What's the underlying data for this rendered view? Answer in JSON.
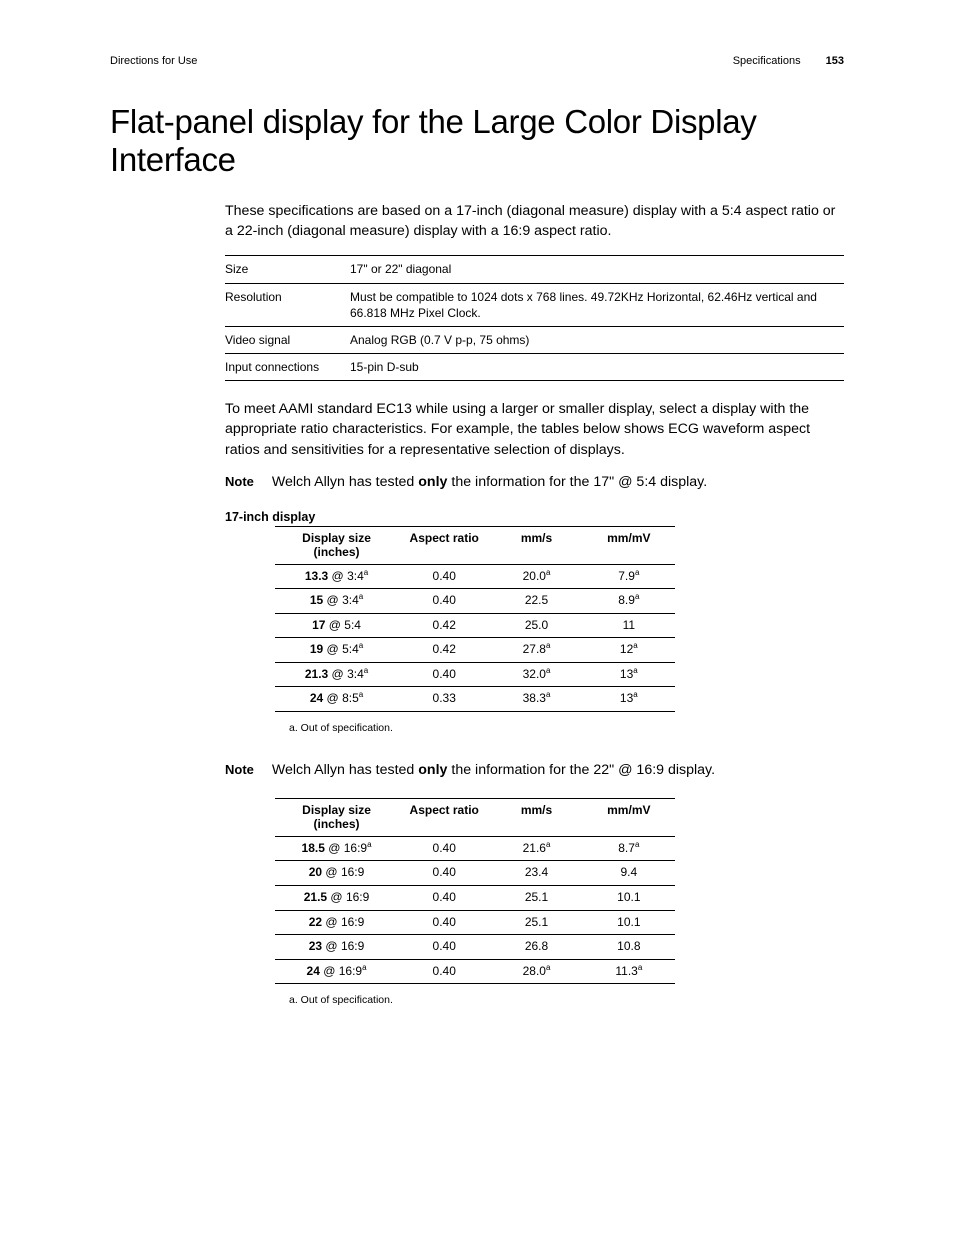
{
  "header": {
    "left": "Directions for Use",
    "right_section": "Specifications",
    "page_number": "153"
  },
  "title": "Flat-panel display for the Large Color Display Interface",
  "intro": "These specifications are based on a 17-inch (diagonal measure) display with a 5:4 aspect ratio or a 22-inch (diagonal measure) display with a 16:9 aspect ratio.",
  "spec_table": {
    "rows": [
      {
        "label": "Size",
        "value": "17\" or 22\" diagonal"
      },
      {
        "label": "Resolution",
        "value": "Must be compatible to 1024 dots x 768 lines. 49.72KHz Horizontal, 62.46Hz vertical and 66.818 MHz Pixel Clock."
      },
      {
        "label": "Video signal",
        "value": "Analog RGB (0.7 V p-p, 75 ohms)"
      },
      {
        "label": "Input connections",
        "value": "15-pin D-sub"
      }
    ]
  },
  "para2": "To meet AAMI standard EC13 while using a larger or smaller display, select a display with the appropriate ratio characteristics. For example, the tables below shows ECG waveform aspect ratios and sensitivities for a representative selection of displays.",
  "note1": {
    "tag": "Note",
    "before": "Welch Allyn has tested ",
    "bold": "only",
    "after": " the information for the 17\" @ 5:4 display."
  },
  "table17": {
    "caption": "17-inch display",
    "headers": [
      "Display size (inches)",
      "Aspect ratio",
      "mm/s",
      "mm/mV"
    ],
    "rows": [
      {
        "size_bold": "13.3",
        "size_rest": " @ 3:4",
        "size_sup": "a",
        "aspect": "0.40",
        "mms": "20.0",
        "mms_sup": "a",
        "mmmv": "7.9",
        "mmmv_sup": "a"
      },
      {
        "size_bold": "15",
        "size_rest": " @ 3:4",
        "size_sup": "a",
        "aspect": "0.40",
        "mms": "22.5",
        "mms_sup": "",
        "mmmv": "8.9",
        "mmmv_sup": "a"
      },
      {
        "size_bold": "17",
        "size_rest": " @ 5:4",
        "size_sup": "",
        "aspect": "0.42",
        "mms": "25.0",
        "mms_sup": "",
        "mmmv": "11",
        "mmmv_sup": ""
      },
      {
        "size_bold": "19",
        "size_rest": " @ 5:4",
        "size_sup": "a",
        "aspect": "0.42",
        "mms": "27.8",
        "mms_sup": "a",
        "mmmv": "12",
        "mmmv_sup": "a"
      },
      {
        "size_bold": "21.3",
        "size_rest": " @ 3:4",
        "size_sup": "a",
        "aspect": "0.40",
        "mms": "32.0",
        "mms_sup": "a",
        "mmmv": "13",
        "mmmv_sup": "a"
      },
      {
        "size_bold": "24",
        "size_rest": " @ 8:5",
        "size_sup": "a",
        "aspect": "0.33",
        "mms": "38.3",
        "mms_sup": "a",
        "mmmv": "13",
        "mmmv_sup": "a"
      }
    ],
    "footnote": "a. Out of specification."
  },
  "note2": {
    "tag": "Note",
    "before": "Welch Allyn has tested ",
    "bold": "only",
    "after": " the information for the 22\" @ 16:9 display."
  },
  "table22": {
    "headers": [
      "Display size (inches)",
      "Aspect ratio",
      "mm/s",
      "mm/mV"
    ],
    "rows": [
      {
        "size_bold": "18.5",
        "size_rest": " @ 16:9",
        "size_sup": "a",
        "aspect": "0.40",
        "mms": "21.6",
        "mms_sup": "a",
        "mmmv": "8.7",
        "mmmv_sup": "a"
      },
      {
        "size_bold": "20",
        "size_rest": " @ 16:9",
        "size_sup": "",
        "aspect": "0.40",
        "mms": "23.4",
        "mms_sup": "",
        "mmmv": "9.4",
        "mmmv_sup": ""
      },
      {
        "size_bold": "21.5",
        "size_rest": " @ 16:9",
        "size_sup": "",
        "aspect": "0.40",
        "mms": "25.1",
        "mms_sup": "",
        "mmmv": "10.1",
        "mmmv_sup": ""
      },
      {
        "size_bold": "22",
        "size_rest": " @ 16:9",
        "size_sup": "",
        "aspect": "0.40",
        "mms": "25.1",
        "mms_sup": "",
        "mmmv": "10.1",
        "mmmv_sup": ""
      },
      {
        "size_bold": "23",
        "size_rest": " @ 16:9",
        "size_sup": "",
        "aspect": "0.40",
        "mms": "26.8",
        "mms_sup": "",
        "mmmv": "10.8",
        "mmmv_sup": ""
      },
      {
        "size_bold": "24",
        "size_rest": " @ 16:9",
        "size_sup": "a",
        "aspect": "0.40",
        "mms": "28.0",
        "mms_sup": "a",
        "mmmv": "11.3",
        "mmmv_sup": "a"
      }
    ],
    "footnote": "a. Out of specification."
  }
}
